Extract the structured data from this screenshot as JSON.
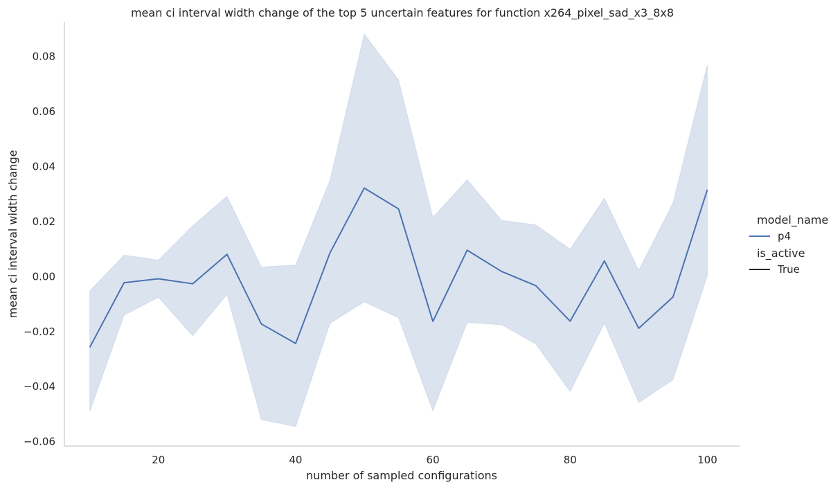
{
  "chart_data": {
    "type": "line",
    "title": "mean ci interval width change of the top 5 uncertain features for function x264_pixel_sad_x3_8x8",
    "xlabel": "number of sampled configurations",
    "ylabel": "mean ci interval width change",
    "x_ticks": [
      20,
      40,
      60,
      80,
      100
    ],
    "x_tick_labels": [
      "20",
      "40",
      "60",
      "80",
      "100"
    ],
    "y_ticks": [
      -0.06,
      -0.04,
      -0.02,
      0.0,
      0.02,
      0.04,
      0.06,
      0.08
    ],
    "y_tick_labels": [
      "−0.06",
      "−0.04",
      "−0.02",
      "0.00",
      "0.02",
      "0.04",
      "0.06",
      "0.08"
    ],
    "xlim": [
      6.3,
      104.7
    ],
    "ylim": [
      -0.0616,
      0.0925
    ],
    "grid": false,
    "legend_placement": "right",
    "legend": {
      "hue_title": "model_name",
      "hue_items": [
        {
          "label": "p4",
          "color": "#4c72b0"
        }
      ],
      "style_title": "is_active",
      "style_items": [
        {
          "label": "True",
          "color": "#262626"
        }
      ]
    },
    "x": [
      10,
      15,
      20,
      25,
      30,
      35,
      40,
      45,
      50,
      55,
      60,
      65,
      70,
      75,
      80,
      85,
      90,
      95,
      100
    ],
    "series": [
      {
        "name": "p4",
        "color": "#4c72b0",
        "band_color": "#4c72b0",
        "values": [
          -0.0257,
          -0.0022,
          -0.0008,
          -0.0026,
          0.0081,
          -0.0172,
          -0.0243,
          0.0086,
          0.0322,
          0.0246,
          -0.0163,
          0.0096,
          0.0019,
          -0.0033,
          -0.0162,
          0.0057,
          -0.0188,
          -0.0074,
          0.0316
        ],
        "ci_lower": [
          -0.049,
          -0.014,
          -0.0075,
          -0.0215,
          -0.0065,
          -0.052,
          -0.0545,
          -0.017,
          -0.0092,
          -0.015,
          -0.0488,
          -0.0167,
          -0.0175,
          -0.0245,
          -0.0418,
          -0.017,
          -0.0458,
          -0.0375,
          0.0003
        ],
        "ci_upper": [
          -0.0052,
          0.0078,
          0.006,
          0.0185,
          0.0292,
          0.0035,
          0.0042,
          0.035,
          0.0882,
          0.0715,
          0.0215,
          0.0352,
          0.0205,
          0.0188,
          0.01,
          0.0285,
          0.0023,
          0.0268,
          0.077
        ]
      }
    ]
  }
}
